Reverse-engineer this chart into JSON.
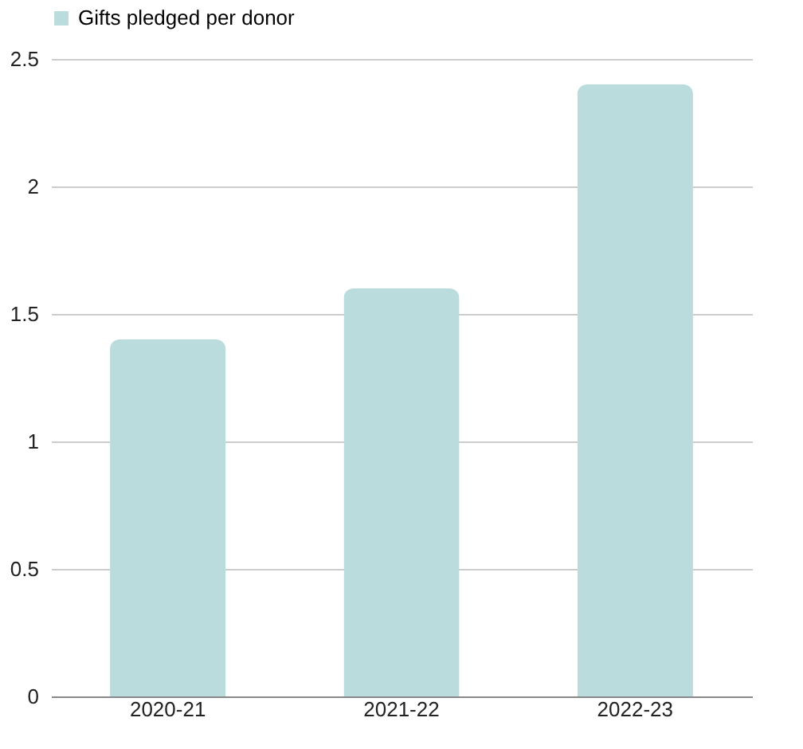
{
  "chart_data": {
    "type": "bar",
    "categories": [
      "2020-21",
      "2021-22",
      "2022-23"
    ],
    "series": [
      {
        "name": "Gifts pledged per donor",
        "color": "#badcdc",
        "values": [
          1.4,
          1.6,
          2.4
        ]
      }
    ],
    "ylim": [
      0,
      2.5
    ],
    "yticks": [
      0,
      0.5,
      1,
      1.5,
      2,
      2.5
    ],
    "grid": "y",
    "legend": "top"
  }
}
